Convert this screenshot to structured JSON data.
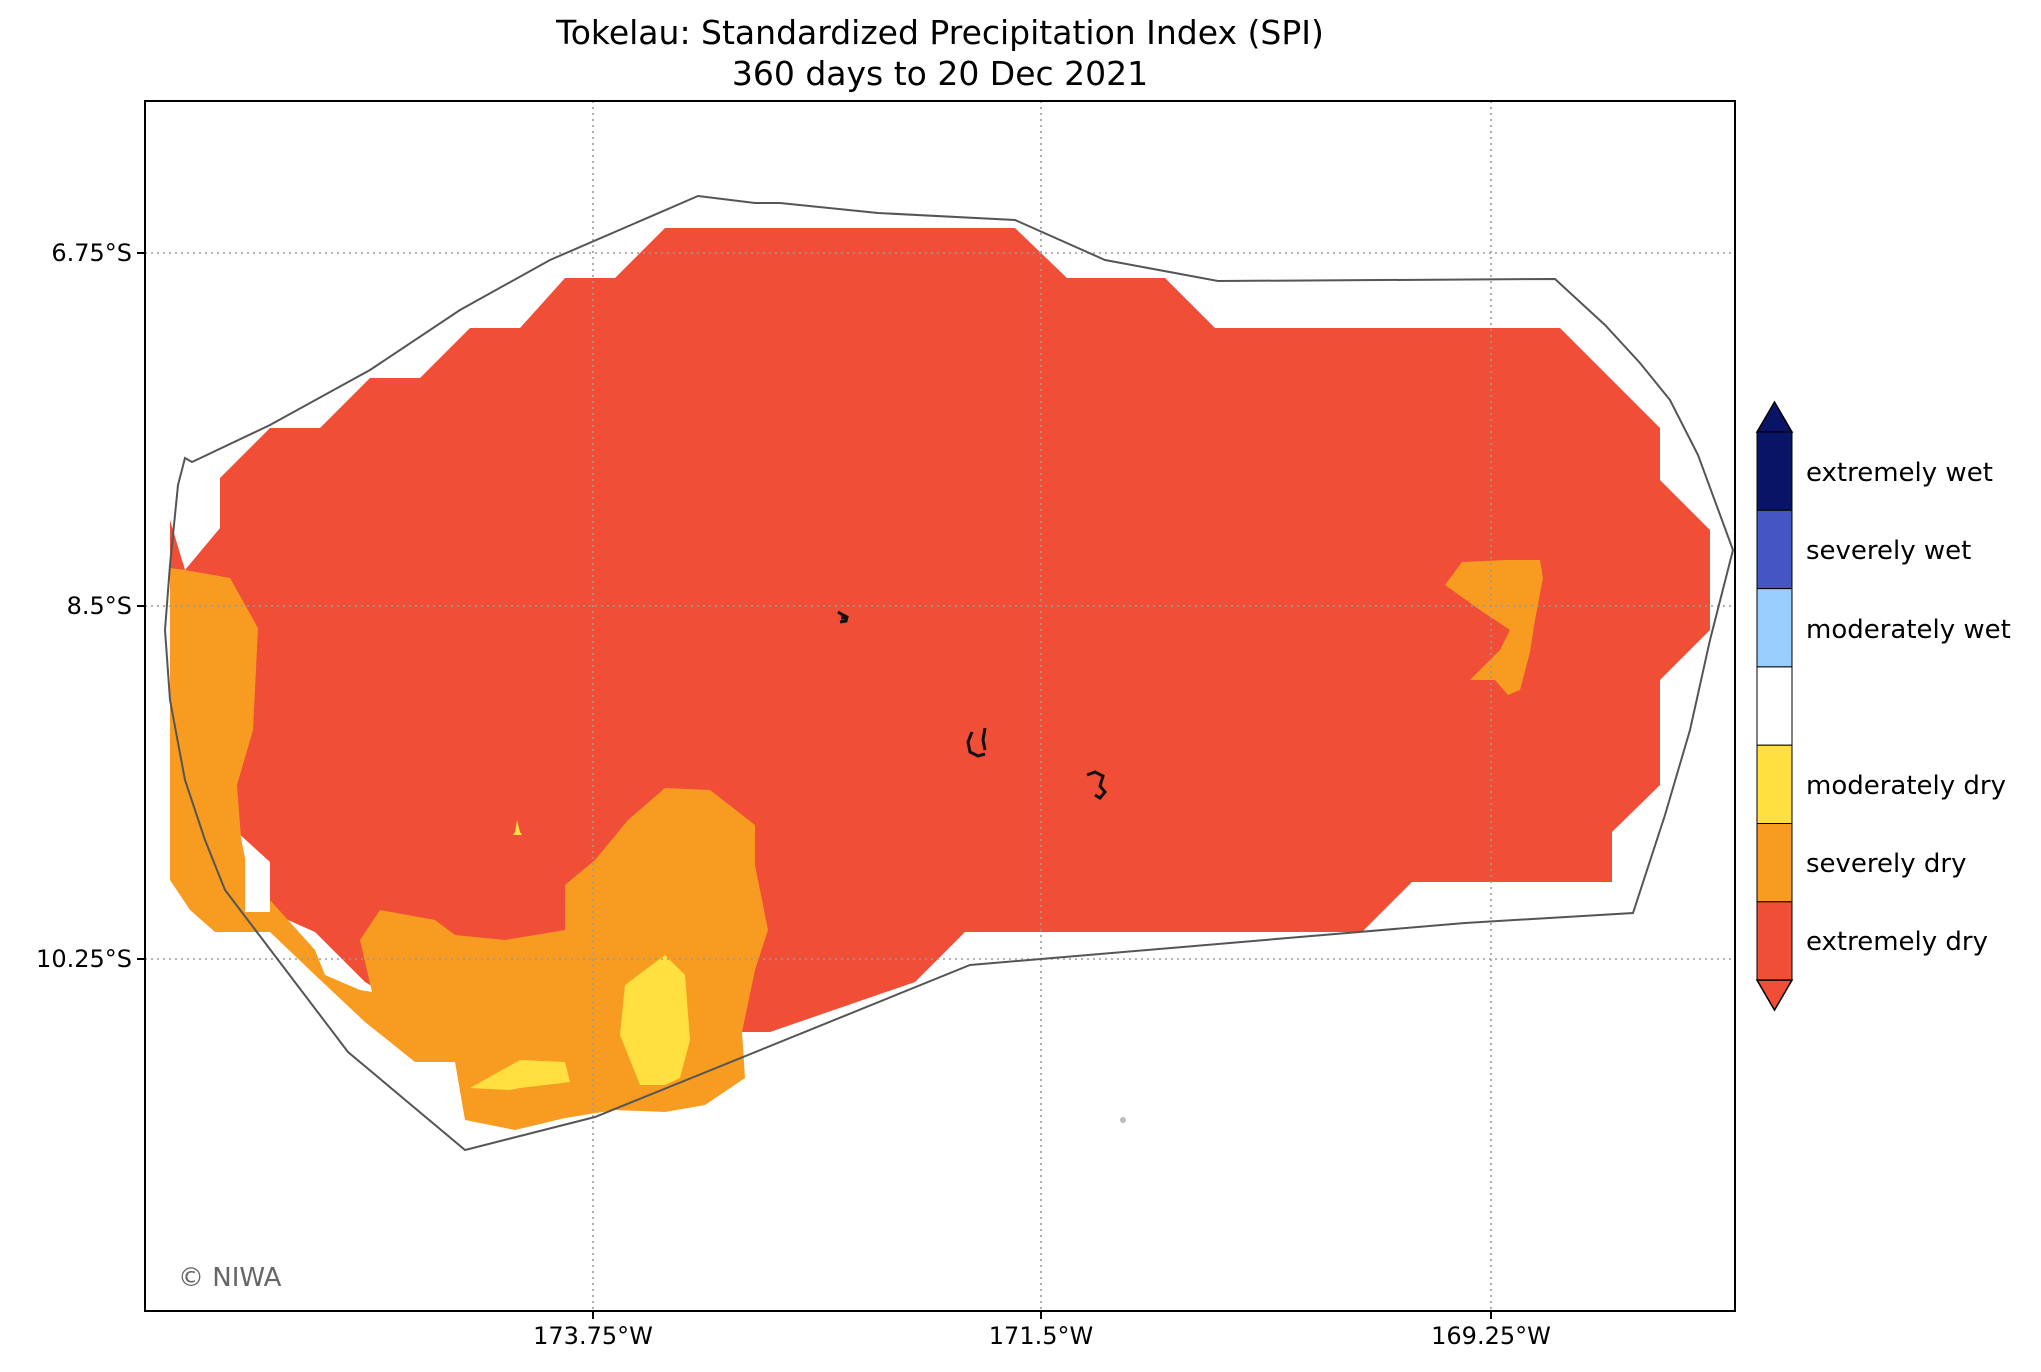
{
  "title": {
    "line1": "Tokelau: Standardized Precipitation Index (SPI)",
    "line2": "360 days to 20 Dec 2021"
  },
  "axes": {
    "lat_ticks": [
      "6.75°S",
      "8.5°S",
      "10.25°S"
    ],
    "lon_ticks": [
      "173.75°W",
      "171.5°W",
      "169.25°W"
    ]
  },
  "credit": "© NIWA",
  "legend": {
    "categories": [
      {
        "label": "extremely wet",
        "color": "#0a1466"
      },
      {
        "label": "severely wet",
        "color": "#4455c4"
      },
      {
        "label": "moderately wet",
        "color": "#99ccff"
      },
      {
        "label": "",
        "color": "#ffffff"
      },
      {
        "label": "moderately dry",
        "color": "#ffe040"
      },
      {
        "label": "severely dry",
        "color": "#f79c20"
      },
      {
        "label": "extremely dry",
        "color": "#f04e37"
      }
    ]
  },
  "colors": {
    "frame": "#000000",
    "gridline": "#9a9a9a",
    "region_outline": "#555555",
    "atoll": "#111111"
  },
  "map_features": {
    "regions": [
      "region-outline",
      "extremely-dry-zone",
      "severely-dry-zone",
      "moderately-dry-zone"
    ],
    "atolls": [
      "atoll-atafu",
      "atoll-nukunonu",
      "atoll-fakaofo"
    ]
  }
}
